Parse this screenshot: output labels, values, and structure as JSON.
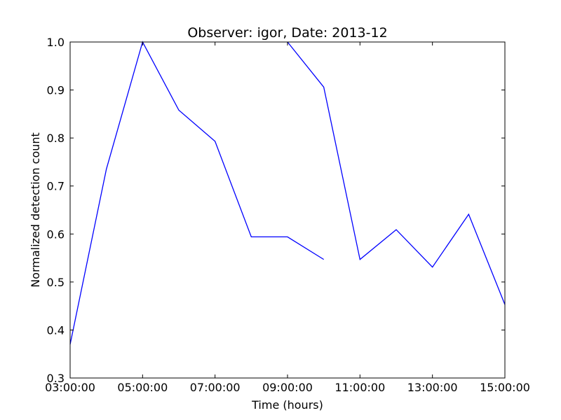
{
  "chart_data": {
    "type": "line",
    "title": "Observer: igor, Date: 2013-12",
    "xlabel": "Time (hours)",
    "ylabel": "Normalized detection count",
    "xlim": [
      3,
      15
    ],
    "ylim": [
      0.3,
      1.0
    ],
    "x_ticks": [
      {
        "value": 3,
        "label": "03:00:00"
      },
      {
        "value": 5,
        "label": "05:00:00"
      },
      {
        "value": 7,
        "label": "07:00:00"
      },
      {
        "value": 9,
        "label": "09:00:00"
      },
      {
        "value": 11,
        "label": "11:00:00"
      },
      {
        "value": 13,
        "label": "13:00:00"
      },
      {
        "value": 15,
        "label": "15:00:00"
      }
    ],
    "y_ticks": [
      {
        "value": 0.3,
        "label": "0.3"
      },
      {
        "value": 0.4,
        "label": "0.4"
      },
      {
        "value": 0.5,
        "label": "0.5"
      },
      {
        "value": 0.6,
        "label": "0.6"
      },
      {
        "value": 0.7,
        "label": "0.7"
      },
      {
        "value": 0.8,
        "label": "0.8"
      },
      {
        "value": 0.9,
        "label": "0.9"
      },
      {
        "value": 1.0,
        "label": "1.0"
      }
    ],
    "grid": false,
    "series": [
      {
        "color": "#0000ff",
        "segments": [
          [
            [
              3,
              0.37
            ],
            [
              4,
              0.735
            ],
            [
              5,
              1.0
            ],
            [
              6,
              0.858
            ],
            [
              7,
              0.793
            ],
            [
              8,
              0.594
            ],
            [
              9,
              0.594
            ],
            [
              10,
              0.547
            ]
          ],
          [
            [
              9,
              1.0
            ],
            [
              10,
              0.906
            ],
            [
              11,
              0.547
            ],
            [
              12,
              0.609
            ],
            [
              13,
              0.531
            ],
            [
              14,
              0.641
            ],
            [
              15,
              0.453
            ]
          ]
        ]
      }
    ]
  }
}
